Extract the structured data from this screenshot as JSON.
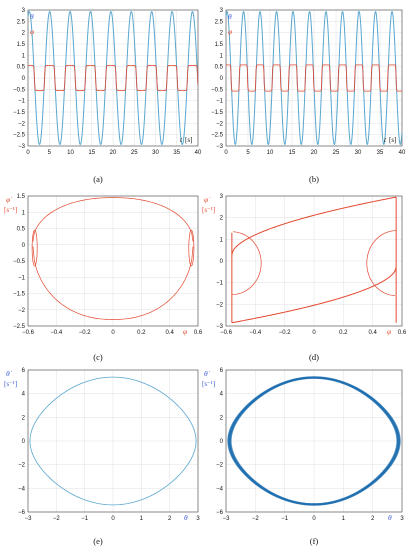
{
  "colors": {
    "theta": "#5aa7cf",
    "theta_dark": "#1f6fb0",
    "phi": "#e4482f",
    "axis": "#444444",
    "grid": "#d8d8d8"
  },
  "captions": {
    "a": "(a)",
    "b": "(b)",
    "c": "(c)",
    "d": "(d)",
    "e": "(e)",
    "f": "(f)"
  },
  "chart_data": [
    {
      "panel": "a",
      "type": "line",
      "xlabel": "t",
      "xunit": "[s]",
      "ylabel_series": [
        "θ",
        "φ"
      ],
      "xlim": [
        0,
        40
      ],
      "ylim": [
        -3,
        3
      ],
      "xticks": [
        0,
        5,
        10,
        15,
        20,
        25,
        30,
        35,
        40
      ],
      "yticks": [
        -3,
        -2.5,
        -2,
        -1.5,
        -1,
        -0.5,
        0,
        0.5,
        1,
        1.5,
        2,
        2.5,
        3
      ],
      "series": [
        {
          "name": "θ",
          "amplitude": 2.93,
          "period_s": 4.8
        },
        {
          "name": "φ",
          "amplitude": 0.55,
          "period_s": 4.8,
          "shape": "square"
        }
      ]
    },
    {
      "panel": "b",
      "type": "line",
      "xlabel": "t",
      "xunit": "[s]",
      "ylabel_series": [
        "θ",
        "φ"
      ],
      "xlim": [
        0,
        40
      ],
      "ylim": [
        -3,
        3
      ],
      "xticks": [
        0,
        5,
        10,
        15,
        20,
        25,
        30,
        35,
        40
      ],
      "yticks": [
        -3,
        -2.5,
        -2,
        -1.5,
        -1,
        -0.5,
        0,
        0.5,
        1,
        1.5,
        2,
        2.5,
        3
      ],
      "series": [
        {
          "name": "θ",
          "amplitude": 2.93,
          "period_s": 3.75
        },
        {
          "name": "φ",
          "amplitude": 0.58,
          "period_s": 3.75,
          "shape": "square-with-spikes"
        }
      ]
    },
    {
      "panel": "c",
      "type": "line",
      "xlabel": "φ",
      "ylabel": "φ̇",
      "yunit": "[s⁻¹]",
      "xlim": [
        -0.6,
        0.6
      ],
      "ylim": [
        -2.5,
        1.5
      ],
      "xticks": [
        -0.6,
        -0.4,
        -0.2,
        0,
        0.2,
        0.4,
        0.6
      ],
      "yticks": [
        -2.5,
        -2,
        -1.5,
        -1,
        -0.5,
        0,
        0.5,
        1,
        1.5
      ],
      "series": [
        {
          "name": "phase",
          "upper_peak": 1.45,
          "lower_peak": -2.3,
          "x_extent": 0.565
        }
      ]
    },
    {
      "panel": "d",
      "type": "line",
      "xlabel": "φ",
      "ylabel": "φ̇",
      "yunit": "[s⁻¹]",
      "xlim": [
        -0.6,
        0.6
      ],
      "ylim": [
        -3,
        3
      ],
      "xticks": [
        -0.6,
        -0.4,
        -0.2,
        0,
        0.2,
        0.4,
        0.6
      ],
      "yticks": [
        -3,
        -2,
        -1,
        0,
        1,
        2,
        3
      ],
      "series": [
        {
          "name": "phase",
          "upper_end": 2.95,
          "lower_start": -2.85
        }
      ]
    },
    {
      "panel": "e",
      "type": "line",
      "xlabel": "θ",
      "ylabel": "θ̇",
      "yunit": "[s⁻¹]",
      "xlim": [
        -3,
        3
      ],
      "ylim": [
        -6,
        6
      ],
      "xticks": [
        -3,
        -2,
        -1,
        0,
        1,
        2,
        3
      ],
      "yticks": [
        -6,
        -4,
        -2,
        0,
        2,
        4,
        6
      ],
      "series": [
        {
          "name": "phase",
          "theta_max": 2.93,
          "thetadot_max": 5.4
        }
      ]
    },
    {
      "panel": "f",
      "type": "line",
      "xlabel": "θ",
      "ylabel": "θ̇",
      "yunit": "[s⁻¹]",
      "xlim": [
        -3,
        3
      ],
      "ylim": [
        -6,
        6
      ],
      "xticks": [
        -3,
        -2,
        -1,
        0,
        1,
        2,
        3
      ],
      "yticks": [
        -6,
        -4,
        -2,
        0,
        2,
        4,
        6
      ],
      "series": [
        {
          "name": "phase",
          "theta_max": 2.93,
          "thetadot_max": 5.4
        }
      ]
    }
  ]
}
